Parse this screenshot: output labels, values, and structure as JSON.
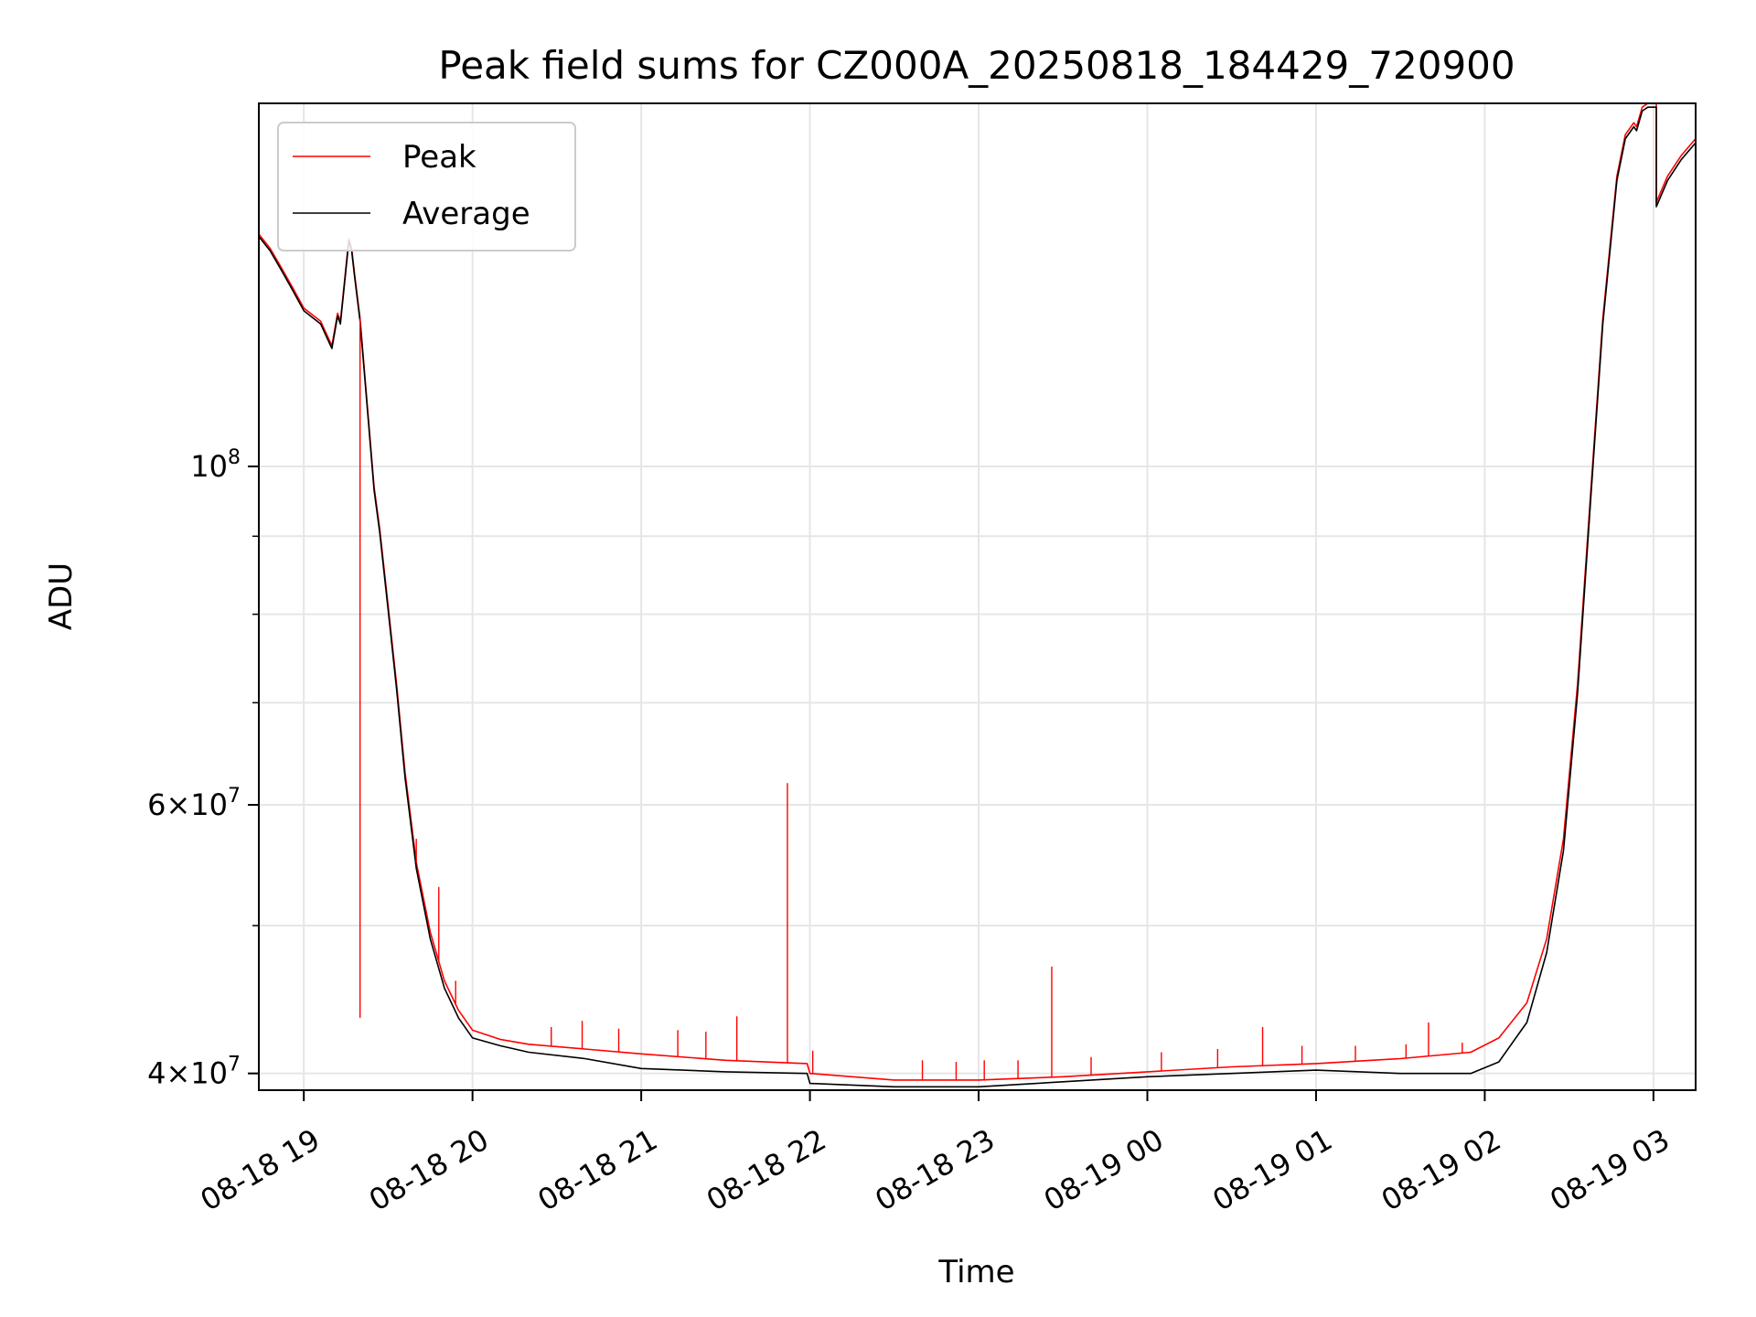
{
  "chart_data": {
    "type": "line",
    "title": "Peak field sums for CZ000A_20250818_184429_720900",
    "xlabel": "Time",
    "ylabel": "ADU",
    "y_scale": "log",
    "grid": true,
    "legend_position": "top-left",
    "xlim": [
      "2025-08-18 18:44",
      "2025-08-19 03:15"
    ],
    "ylim": [
      39000000,
      173000000
    ],
    "x_ticks": [
      {
        "value": "2025-08-18 19:00",
        "label": "08-18 19"
      },
      {
        "value": "2025-08-18 20:00",
        "label": "08-18 20"
      },
      {
        "value": "2025-08-18 21:00",
        "label": "08-18 21"
      },
      {
        "value": "2025-08-18 22:00",
        "label": "08-18 22"
      },
      {
        "value": "2025-08-18 23:00",
        "label": "08-18 23"
      },
      {
        "value": "2025-08-19 00:00",
        "label": "08-19 00"
      },
      {
        "value": "2025-08-19 01:00",
        "label": "08-19 01"
      },
      {
        "value": "2025-08-19 02:00",
        "label": "08-19 02"
      },
      {
        "value": "2025-08-19 03:00",
        "label": "08-19 03"
      }
    ],
    "y_major_ticks": [
      {
        "value": 40000000,
        "base": "4",
        "exp": "7"
      },
      {
        "value": 60000000,
        "base": "6",
        "exp": "7"
      },
      {
        "value": 100000000,
        "base": "",
        "exp": "8"
      }
    ],
    "y_minor_ticks": [
      50000000,
      70000000,
      80000000,
      90000000
    ],
    "series": [
      {
        "name": "Peak",
        "color": "#ff0000",
        "x": [
          "2025-08-18 18:44",
          "2025-08-18 18:48",
          "2025-08-18 18:52",
          "2025-08-18 18:56",
          "2025-08-18 19:00",
          "2025-08-18 19:06",
          "2025-08-18 19:10",
          "2025-08-18 19:12",
          "2025-08-18 19:13",
          "2025-08-18 19:16",
          "2025-08-18 19:17",
          "2025-08-18 19:18",
          "2025-08-18 19:20",
          "2025-08-18 19:22",
          "2025-08-18 19:25",
          "2025-08-18 19:27",
          "2025-08-18 19:30",
          "2025-08-18 19:33",
          "2025-08-18 19:36",
          "2025-08-18 19:40",
          "2025-08-18 19:45",
          "2025-08-18 19:50",
          "2025-08-18 19:55",
          "2025-08-18 20:00",
          "2025-08-18 20:10",
          "2025-08-18 20:20",
          "2025-08-18 20:40",
          "2025-08-18 21:00",
          "2025-08-18 21:30",
          "2025-08-18 21:59",
          "2025-08-18 22:00",
          "2025-08-18 22:30",
          "2025-08-18 23:00",
          "2025-08-18 23:30",
          "2025-08-19 00:00",
          "2025-08-19 00:30",
          "2025-08-19 01:00",
          "2025-08-19 01:30",
          "2025-08-19 01:55",
          "2025-08-19 02:05",
          "2025-08-19 02:15",
          "2025-08-19 02:22",
          "2025-08-19 02:28",
          "2025-08-19 02:33",
          "2025-08-19 02:38",
          "2025-08-19 02:42",
          "2025-08-19 02:47",
          "2025-08-19 02:50",
          "2025-08-19 02:53",
          "2025-08-19 02:54",
          "2025-08-19 02:56",
          "2025-08-19 02:58",
          "2025-08-19 03:00",
          "2025-08-19 03:01",
          "2025-08-19 03:01",
          "2025-08-19 03:05",
          "2025-08-19 03:10",
          "2025-08-19 03:15"
        ],
        "y": [
          142000000,
          139000000,
          135000000,
          131000000,
          127000000,
          124500000,
          120000000,
          126000000,
          124500000,
          141000000,
          139000000,
          134000000,
          125000000,
          113000000,
          97000000,
          91000000,
          81000000,
          72000000,
          63000000,
          55000000,
          49500000,
          46000000,
          44000000,
          42700000,
          42100000,
          41800000,
          41500000,
          41200000,
          40800000,
          40600000,
          40000000,
          39600000,
          39600000,
          39800000,
          40100000,
          40400000,
          40600000,
          40900000,
          41300000,
          42200000,
          44500000,
          49000000,
          57000000,
          72000000,
          98000000,
          125000000,
          155000000,
          165000000,
          168000000,
          167000000,
          172000000,
          173000000,
          173000000,
          173000000,
          149000000,
          155000000,
          160000000,
          164000000
        ]
      },
      {
        "name": "Average",
        "color": "#000000",
        "x": [
          "2025-08-18 18:44",
          "2025-08-18 18:48",
          "2025-08-18 18:52",
          "2025-08-18 18:56",
          "2025-08-18 19:00",
          "2025-08-18 19:06",
          "2025-08-18 19:10",
          "2025-08-18 19:12",
          "2025-08-18 19:13",
          "2025-08-18 19:16",
          "2025-08-18 19:17",
          "2025-08-18 19:18",
          "2025-08-18 19:20",
          "2025-08-18 19:22",
          "2025-08-18 19:25",
          "2025-08-18 19:27",
          "2025-08-18 19:30",
          "2025-08-18 19:33",
          "2025-08-18 19:36",
          "2025-08-18 19:40",
          "2025-08-18 19:45",
          "2025-08-18 19:50",
          "2025-08-18 19:55",
          "2025-08-18 20:00",
          "2025-08-18 20:10",
          "2025-08-18 20:20",
          "2025-08-18 20:40",
          "2025-08-18 21:00",
          "2025-08-18 21:30",
          "2025-08-18 21:59",
          "2025-08-18 22:00",
          "2025-08-18 22:30",
          "2025-08-18 23:00",
          "2025-08-18 23:30",
          "2025-08-19 00:00",
          "2025-08-19 00:30",
          "2025-08-19 01:00",
          "2025-08-19 01:30",
          "2025-08-19 01:55",
          "2025-08-19 02:05",
          "2025-08-19 02:15",
          "2025-08-19 02:22",
          "2025-08-19 02:28",
          "2025-08-19 02:33",
          "2025-08-19 02:38",
          "2025-08-19 02:42",
          "2025-08-19 02:47",
          "2025-08-19 02:50",
          "2025-08-19 02:53",
          "2025-08-19 02:54",
          "2025-08-19 02:56",
          "2025-08-19 02:58",
          "2025-08-19 03:00",
          "2025-08-19 03:01",
          "2025-08-19 03:01",
          "2025-08-19 03:05",
          "2025-08-19 03:10",
          "2025-08-19 03:15"
        ],
        "y": [
          141500000,
          138500000,
          134500000,
          130500000,
          126500000,
          124000000,
          119500000,
          125500000,
          124000000,
          140500000,
          138500000,
          133500000,
          124500000,
          112500000,
          96500000,
          90500000,
          80500000,
          71500000,
          62500000,
          54500000,
          49000000,
          45500000,
          43500000,
          42200000,
          41700000,
          41300000,
          40900000,
          40300000,
          40100000,
          40000000,
          39400000,
          39200000,
          39200000,
          39500000,
          39800000,
          40000000,
          40200000,
          40000000,
          40000000,
          40700000,
          43200000,
          48000000,
          56000000,
          71000000,
          97000000,
          124000000,
          154000000,
          164000000,
          167000000,
          166000000,
          171000000,
          172000000,
          172000000,
          172000000,
          148000000,
          154000000,
          159000000,
          163000000
        ]
      }
    ],
    "peak_spikes": [
      {
        "x": "2025-08-18 19:20",
        "y": 43500000
      },
      {
        "x": "2025-08-18 19:40",
        "y": 57000000
      },
      {
        "x": "2025-08-18 19:48",
        "y": 53000000
      },
      {
        "x": "2025-08-18 19:54",
        "y": 46000000
      },
      {
        "x": "2025-08-18 20:28",
        "y": 42900000
      },
      {
        "x": "2025-08-18 20:39",
        "y": 43300000
      },
      {
        "x": "2025-08-18 20:52",
        "y": 42800000
      },
      {
        "x": "2025-08-18 21:13",
        "y": 42700000
      },
      {
        "x": "2025-08-18 21:23",
        "y": 42600000
      },
      {
        "x": "2025-08-18 21:34",
        "y": 43600000
      },
      {
        "x": "2025-08-18 21:52",
        "y": 62000000
      },
      {
        "x": "2025-08-18 22:01",
        "y": 41400000
      },
      {
        "x": "2025-08-18 22:40",
        "y": 40800000
      },
      {
        "x": "2025-08-18 22:52",
        "y": 40700000
      },
      {
        "x": "2025-08-18 23:02",
        "y": 40800000
      },
      {
        "x": "2025-08-18 23:14",
        "y": 40800000
      },
      {
        "x": "2025-08-18 23:26",
        "y": 47000000
      },
      {
        "x": "2025-08-18 23:40",
        "y": 41000000
      },
      {
        "x": "2025-08-19 00:05",
        "y": 41300000
      },
      {
        "x": "2025-08-19 00:25",
        "y": 41500000
      },
      {
        "x": "2025-08-19 00:41",
        "y": 42900000
      },
      {
        "x": "2025-08-19 00:55",
        "y": 41700000
      },
      {
        "x": "2025-08-19 01:14",
        "y": 41700000
      },
      {
        "x": "2025-08-19 01:32",
        "y": 41800000
      },
      {
        "x": "2025-08-19 01:40",
        "y": 43200000
      },
      {
        "x": "2025-08-19 01:52",
        "y": 41900000
      }
    ]
  }
}
